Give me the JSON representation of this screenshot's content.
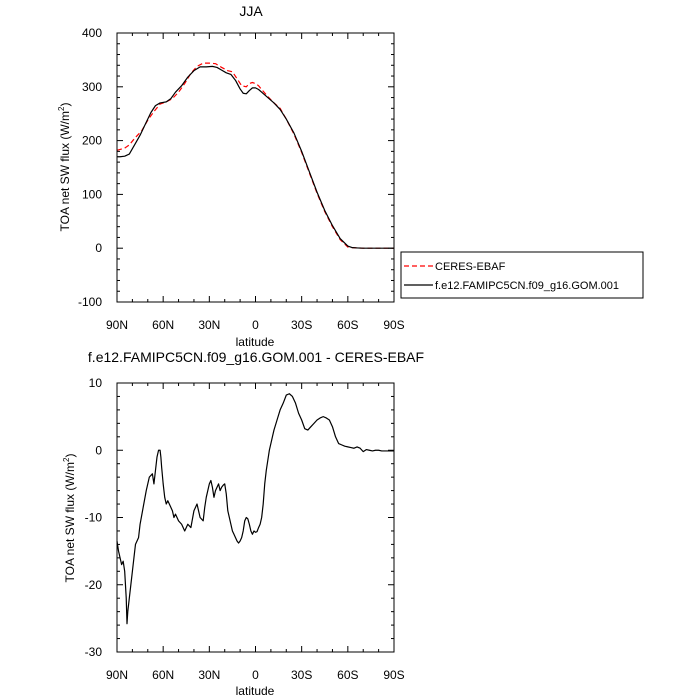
{
  "chart_data": [
    {
      "type": "line",
      "title": "JJA",
      "xlabel": "latitude",
      "ylabel": "TOA net SW flux (W/m",
      "ylabel_sup": "2",
      "ylabel_close": ")",
      "xlim": [
        90,
        -90
      ],
      "ylim": [
        -100,
        400
      ],
      "x_ticks": [
        90,
        60,
        30,
        0,
        -30,
        -60,
        -90
      ],
      "x_tick_labels": [
        "90N",
        "60N",
        "30N",
        "0",
        "30S",
        "60S",
        "90S"
      ],
      "y_ticks": [
        -100,
        0,
        100,
        200,
        300,
        400
      ],
      "y_tick_labels": [
        "-100",
        "0",
        "100",
        "200",
        "300",
        "400"
      ],
      "legend_position": "right-bottom, outside plot",
      "series": [
        {
          "name": "CERES-EBAF",
          "color": "#ff0000",
          "dashed": true,
          "x": [
            90,
            85,
            82,
            78,
            74,
            70,
            66,
            62,
            58,
            54,
            50,
            46,
            42,
            38,
            34,
            30,
            26,
            22,
            18,
            15,
            12,
            9,
            6,
            4,
            2,
            0,
            -2,
            -4,
            -8,
            -12,
            -16,
            -20,
            -25,
            -30,
            -35,
            -40,
            -45,
            -50,
            -55,
            -60,
            -63,
            -66,
            -70,
            -75,
            -80,
            -85,
            -90
          ],
          "y": [
            182,
            186,
            192,
            206,
            218,
            238,
            254,
            268,
            272,
            278,
            290,
            306,
            325,
            338,
            344,
            344,
            343,
            336,
            330,
            328,
            315,
            302,
            300,
            306,
            308,
            306,
            302,
            295,
            282,
            270,
            260,
            240,
            212,
            178,
            140,
            102,
            68,
            40,
            16,
            2,
            1,
            0.5,
            0,
            0,
            0,
            0,
            0
          ]
        },
        {
          "name": "f.e12.FAMIPC5CN.f09_g16.GOM.001",
          "color": "#000000",
          "dashed": false,
          "x": [
            90,
            88,
            85,
            82,
            80,
            78,
            75,
            72,
            68,
            65,
            62,
            58,
            55,
            52,
            48,
            44,
            40,
            36,
            32,
            28,
            25,
            22,
            19,
            16,
            13,
            10,
            8,
            6,
            4,
            2,
            0,
            -2,
            -4,
            -8,
            -12,
            -16,
            -20,
            -25,
            -30,
            -35,
            -40,
            -45,
            -50,
            -55,
            -60,
            -63,
            -66,
            -70,
            -75,
            -80,
            -85,
            -90
          ],
          "y": [
            170,
            170,
            171,
            175,
            185,
            195,
            210,
            228,
            252,
            265,
            270,
            272,
            278,
            290,
            302,
            318,
            330,
            337,
            337,
            338,
            336,
            331,
            326,
            323,
            312,
            296,
            288,
            287,
            293,
            298,
            298,
            295,
            290,
            280,
            270,
            258,
            240,
            214,
            180,
            142,
            104,
            70,
            42,
            18,
            4,
            1,
            0.5,
            0,
            0,
            0,
            0,
            0
          ]
        }
      ]
    },
    {
      "type": "line",
      "title": "f.e12.FAMIPC5CN.f09_g16.GOM.001 - CERES-EBAF",
      "xlabel": "latitude",
      "ylabel": "TOA net SW flux (W/m",
      "ylabel_sup": "2",
      "ylabel_close": ")",
      "xlim": [
        90,
        -90
      ],
      "ylim": [
        -30,
        10
      ],
      "x_ticks": [
        90,
        60,
        30,
        0,
        -30,
        -60,
        -90
      ],
      "x_tick_labels": [
        "90N",
        "60N",
        "30N",
        "0",
        "30S",
        "60S",
        "90S"
      ],
      "y_ticks": [
        -30,
        -20,
        -10,
        0,
        10
      ],
      "y_tick_labels": [
        "-30",
        "-20",
        "-10",
        "0",
        "10"
      ],
      "series": [
        {
          "color": "#000000",
          "dashed": false,
          "x": [
            90,
            89,
            88,
            87,
            86,
            85,
            84,
            83.5,
            83,
            82,
            81,
            80,
            79,
            78,
            77,
            76,
            75,
            73,
            71,
            69,
            67,
            66,
            65,
            64,
            63,
            62.5,
            62,
            61.5,
            61,
            60,
            59,
            58,
            57,
            56,
            55,
            54,
            53,
            52,
            51,
            50,
            48,
            46,
            44,
            42,
            40,
            38,
            36,
            34,
            33,
            32,
            31,
            30,
            29,
            28,
            27,
            26,
            25,
            24,
            23,
            22,
            21,
            20,
            19,
            18,
            17,
            16,
            15,
            14,
            13,
            12,
            11,
            10,
            9,
            8,
            7,
            6,
            5,
            4,
            3,
            2,
            1,
            0,
            -1,
            -2,
            -3,
            -4,
            -5,
            -6,
            -7,
            -8,
            -9,
            -10,
            -11,
            -12,
            -14,
            -16,
            -18,
            -20,
            -22,
            -24,
            -26,
            -28,
            -30,
            -32,
            -34,
            -36,
            -38,
            -40,
            -42,
            -44,
            -46,
            -48,
            -50,
            -52,
            -54,
            -56,
            -58,
            -60,
            -62,
            -64,
            -66,
            -68,
            -70,
            -72,
            -74,
            -76,
            -78,
            -80,
            -82,
            -84,
            -86,
            -88,
            -90
          ],
          "y": [
            -13.5,
            -15,
            -16,
            -17,
            -16.5,
            -18,
            -22,
            -25.8,
            -24,
            -22,
            -20,
            -18,
            -16,
            -14,
            -13.5,
            -13,
            -11,
            -8.5,
            -6,
            -4,
            -3.5,
            -5,
            -3,
            -1,
            0,
            0,
            0,
            -1,
            -2.5,
            -5,
            -7,
            -8,
            -7.5,
            -8,
            -8.5,
            -9,
            -10,
            -9.5,
            -10,
            -10.5,
            -11,
            -12,
            -11,
            -11.5,
            -9,
            -8,
            -10,
            -10.5,
            -8.5,
            -7,
            -6,
            -5,
            -4.5,
            -5.5,
            -7,
            -6,
            -5.5,
            -5,
            -6,
            -5.5,
            -5.2,
            -5,
            -6.5,
            -9,
            -10,
            -11,
            -12,
            -12.5,
            -13,
            -13.5,
            -13.8,
            -13.5,
            -13,
            -12,
            -10.5,
            -10,
            -10.2,
            -11,
            -12,
            -12.5,
            -12,
            -12.2,
            -12.1,
            -11.5,
            -11,
            -10,
            -8,
            -5,
            -3,
            -1.5,
            0,
            1,
            2,
            3,
            4.5,
            6,
            7,
            8.2,
            8.4,
            8,
            7,
            5.5,
            4.5,
            3.2,
            3,
            3.5,
            4,
            4.5,
            4.8,
            5,
            4.8,
            4.5,
            3.5,
            2,
            1,
            0.8,
            0.6,
            0.5,
            0.4,
            0.3,
            0.5,
            0.3,
            -0.2,
            0.1,
            0,
            -0.1,
            0,
            0,
            -0.1,
            -0.1,
            -0.1,
            -0.1,
            -0.1
          ]
        }
      ]
    }
  ]
}
